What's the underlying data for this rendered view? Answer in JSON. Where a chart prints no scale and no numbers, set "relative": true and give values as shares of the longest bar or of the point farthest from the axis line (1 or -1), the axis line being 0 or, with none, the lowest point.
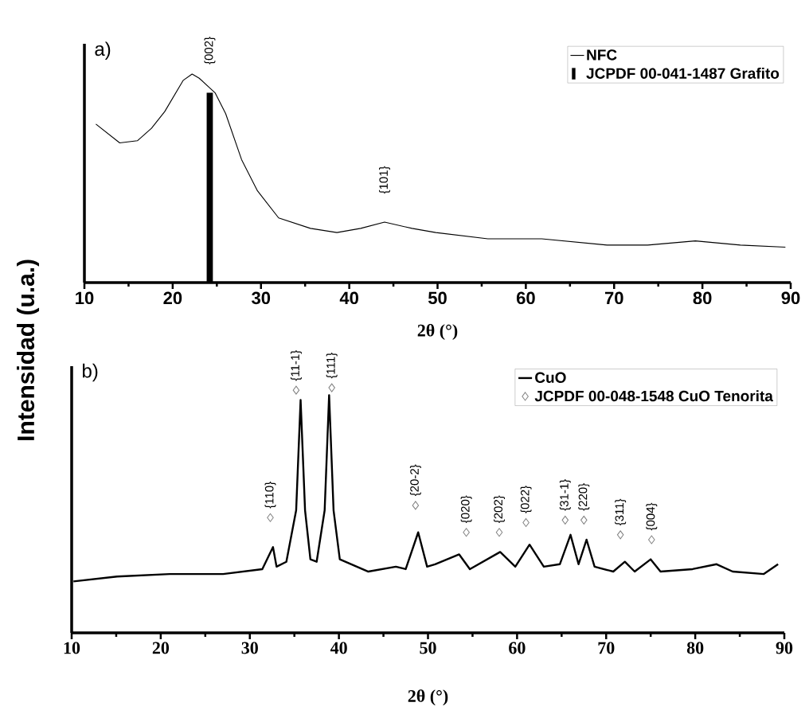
{
  "chart_data": [
    {
      "type": "line",
      "relative": true,
      "xlabel": "2θ (°)",
      "ylabel": "Intensidad (u.a.)",
      "xlim": [
        10,
        90
      ],
      "xticks": [
        10,
        20,
        30,
        40,
        50,
        60,
        70,
        80,
        90
      ],
      "legend": "top right",
      "series": [
        {
          "name": "NFC",
          "color": "#000000",
          "x": [
            11.3,
            14.0,
            16.0,
            17.6,
            19.1,
            21.2,
            22.2,
            23.0,
            24.8,
            26.0,
            27.8,
            29.6,
            32.0,
            35.6,
            38.6,
            41.3,
            44.0,
            47.1,
            49.8,
            55.7,
            61.8,
            69.2,
            73.8,
            79.2,
            84.3,
            89.4
          ],
          "values": [
            0.76,
            0.67,
            0.68,
            0.74,
            0.82,
            0.97,
            1.0,
            0.98,
            0.91,
            0.81,
            0.59,
            0.44,
            0.31,
            0.26,
            0.24,
            0.26,
            0.29,
            0.26,
            0.24,
            0.21,
            0.21,
            0.18,
            0.18,
            0.2,
            0.18,
            0.17
          ]
        },
        {
          "name": "JCPDF 00-041-1487 Grafito",
          "type": "bar",
          "color": "#000000",
          "x": [
            24.2
          ],
          "values": [
            0.91
          ]
        }
      ],
      "annotations": [
        "a)",
        {
          "text": "{002}",
          "x": 24.2,
          "y": 0.91
        },
        {
          "text": "{101}",
          "x": 44.0,
          "y": 0.29
        }
      ]
    },
    {
      "type": "line",
      "relative": true,
      "xlabel": "2θ (°)",
      "xlim": [
        10,
        90
      ],
      "xticks": [
        10,
        20,
        30,
        40,
        50,
        60,
        70,
        80,
        90
      ],
      "legend": "top right",
      "series": [
        {
          "name": "CuO",
          "color": "#000000",
          "x": [
            10.2,
            15.1,
            21.0,
            27.0,
            31.4,
            32.6,
            33.0,
            34.1,
            35.2,
            35.7,
            36.2,
            36.8,
            37.5,
            38.4,
            38.9,
            39.4,
            40.1,
            43.3,
            46.4,
            47.5,
            48.9,
            49.9,
            50.8,
            53.5,
            54.7,
            58.1,
            59.8,
            61.4,
            63.0,
            64.8,
            66.0,
            66.9,
            67.8,
            68.7,
            70.8,
            72.1,
            73.2,
            75.0,
            76.1,
            79.7,
            82.4,
            84.2,
            87.7,
            89.3
          ],
          "values": [
            0.21,
            0.23,
            0.24,
            0.24,
            0.26,
            0.35,
            0.27,
            0.29,
            0.5,
            0.95,
            0.5,
            0.3,
            0.29,
            0.5,
            0.97,
            0.5,
            0.3,
            0.25,
            0.27,
            0.26,
            0.41,
            0.27,
            0.28,
            0.32,
            0.26,
            0.33,
            0.27,
            0.36,
            0.27,
            0.28,
            0.4,
            0.28,
            0.38,
            0.27,
            0.25,
            0.29,
            0.25,
            0.3,
            0.25,
            0.26,
            0.28,
            0.25,
            0.24,
            0.28
          ]
        },
        {
          "name": "JCPDF 00-048-1548 CuO Tenorita",
          "type": "scatter",
          "color": "#808080",
          "marker": "diamond",
          "x": [
            32.3,
            35.2,
            39.2,
            48.6,
            54.3,
            58.0,
            61.0,
            65.4,
            67.5,
            71.6,
            75.1
          ],
          "values": [
            0.47,
            0.99,
            1.0,
            0.52,
            0.41,
            0.41,
            0.45,
            0.46,
            0.46,
            0.4,
            0.38
          ]
        }
      ],
      "annotations": [
        "b)",
        {
          "text": "{110}",
          "x": 32.3,
          "y": 0.47
        },
        {
          "text": "{11-1}",
          "x": 35.2,
          "y": 0.99
        },
        {
          "text": "{111}",
          "x": 39.2,
          "y": 1.0
        },
        {
          "text": "{20-2}",
          "x": 48.6,
          "y": 0.52
        },
        {
          "text": "{020}",
          "x": 54.3,
          "y": 0.41
        },
        {
          "text": "{202}",
          "x": 58.0,
          "y": 0.41
        },
        {
          "text": "{022}",
          "x": 61.0,
          "y": 0.45
        },
        {
          "text": "{31-1}",
          "x": 65.4,
          "y": 0.46
        },
        {
          "text": "{220}",
          "x": 67.5,
          "y": 0.46
        },
        {
          "text": "{311}",
          "x": 71.6,
          "y": 0.4
        },
        {
          "text": "{004}",
          "x": 75.1,
          "y": 0.38
        }
      ]
    }
  ]
}
